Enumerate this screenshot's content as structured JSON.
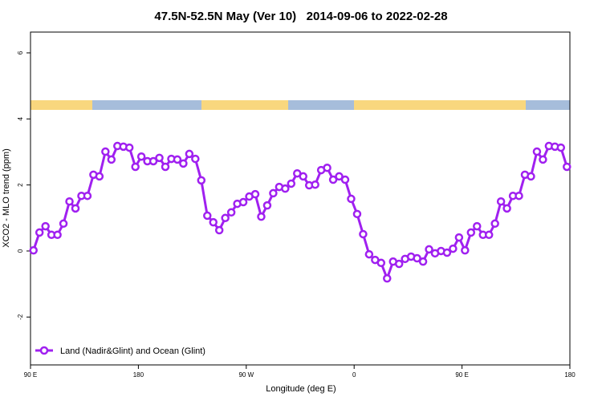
{
  "chart_data": {
    "type": "line",
    "title": "47.5N-52.5N May (Ver 10)   2014-09-06 to 2022-02-28",
    "x_label": "Longitude (deg E)",
    "y_label": "XCO2 - MLO trend (ppm)",
    "legend_position": "bottom-left",
    "xlim": [
      90,
      540
    ],
    "xticks": [
      {
        "value": 90,
        "label": "90 E"
      },
      {
        "value": 180,
        "label": "180"
      },
      {
        "value": 270,
        "label": "90 W"
      },
      {
        "value": 360,
        "label": "0"
      },
      {
        "value": 450,
        "label": "90 E"
      },
      {
        "value": 540,
        "label": "180"
      }
    ],
    "ylim": [
      -3.45,
      6.63
    ],
    "yticks": [
      -2,
      0,
      2,
      4,
      6
    ],
    "x": [
      92.5,
      97.5,
      102.5,
      107.5,
      112.5,
      117.5,
      122.5,
      127.5,
      132.5,
      137.5,
      142.5,
      147.5,
      152.5,
      157.5,
      162.5,
      167.5,
      172.5,
      177.5,
      182.5,
      187.5,
      192.5,
      197.5,
      202.5,
      207.5,
      212.5,
      217.5,
      222.5,
      227.5,
      232.5,
      237.5,
      242.5,
      247.5,
      252.5,
      257.5,
      262.5,
      267.5,
      272.5,
      277.5,
      282.5,
      287.5,
      292.5,
      297.5,
      302.5,
      307.5,
      312.5,
      317.5,
      322.5,
      327.5,
      332.5,
      337.5,
      342.5,
      347.5,
      352.5,
      357.5,
      362.5,
      367.5,
      372.5,
      377.5,
      382.5,
      387.5,
      392.5,
      397.5,
      402.5,
      407.5,
      412.5,
      417.5,
      422.5,
      427.5,
      432.5,
      437.5,
      442.5,
      447.5,
      452.5,
      457.5,
      462.5,
      467.5,
      472.5,
      477.5,
      482.5,
      487.5,
      492.5,
      497.5,
      502.5,
      507.5,
      512.5,
      517.5,
      522.5,
      527.5,
      532.5,
      537.5
    ],
    "series": [
      {
        "name": "Land (Nadir&Glint) and Ocean (Glint)",
        "color": "#a020f0",
        "values": [
          0.02,
          0.56,
          0.75,
          0.49,
          0.49,
          0.83,
          1.5,
          1.29,
          1.67,
          1.67,
          2.31,
          2.26,
          3.01,
          2.77,
          3.18,
          3.16,
          3.13,
          2.55,
          2.86,
          2.72,
          2.72,
          2.82,
          2.55,
          2.79,
          2.77,
          2.65,
          2.94,
          2.79,
          2.14,
          1.07,
          0.87,
          0.63,
          1.0,
          1.17,
          1.43,
          1.48,
          1.65,
          1.72,
          1.04,
          1.38,
          1.75,
          1.94,
          1.89,
          2.04,
          2.35,
          2.26,
          1.99,
          2.01,
          2.45,
          2.52,
          2.16,
          2.26,
          2.16,
          1.58,
          1.12,
          0.51,
          -0.1,
          -0.27,
          -0.36,
          -0.83,
          -0.32,
          -0.39,
          -0.24,
          -0.17,
          -0.22,
          -0.32,
          0.05,
          -0.07,
          0,
          -0.05,
          0.07,
          0.41,
          0.02,
          0.56,
          0.75,
          0.49,
          0.49,
          0.83,
          1.5,
          1.29,
          1.67,
          1.67,
          2.31,
          2.26,
          3.01,
          2.77,
          3.18,
          3.16,
          3.13,
          2.55
        ]
      }
    ]
  }
}
